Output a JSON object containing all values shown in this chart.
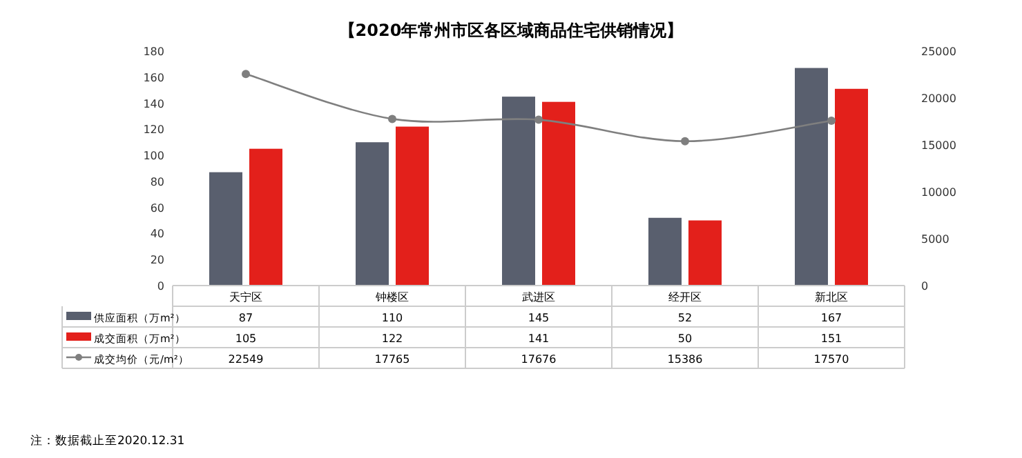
{
  "chart_data": {
    "type": "bar",
    "title": "【2020年常州市区各区域商品住宅供销情况】",
    "categories": [
      "天宁区",
      "钟楼区",
      "武进区",
      "经开区",
      "新北区"
    ],
    "series": [
      {
        "name": "供应面积（万m²）",
        "color": "#595f6e",
        "values": [
          87,
          110,
          145,
          52,
          167
        ]
      },
      {
        "name": "成交面积（万m²）",
        "color": "#e3201b",
        "values": [
          105,
          122,
          141,
          50,
          151
        ]
      },
      {
        "name": "成交均价（元/m²）",
        "color": "#7f7f7f",
        "type": "line",
        "axis": "y2",
        "marker": "circle",
        "line_style": "solid",
        "values": [
          22549,
          17765,
          17676,
          15386,
          17570
        ]
      }
    ],
    "ylim": [
      0,
      180
    ],
    "yticks": [
      0,
      20,
      40,
      60,
      80,
      100,
      120,
      140,
      160,
      180
    ],
    "y2lim": [
      0,
      25000
    ],
    "y2ticks": [
      0,
      5000,
      10000,
      15000,
      20000,
      25000
    ],
    "data_labels": true,
    "grid": false,
    "legend": "bottom left",
    "annotations": [
      "注：数据截止至2020.12.31"
    ]
  }
}
